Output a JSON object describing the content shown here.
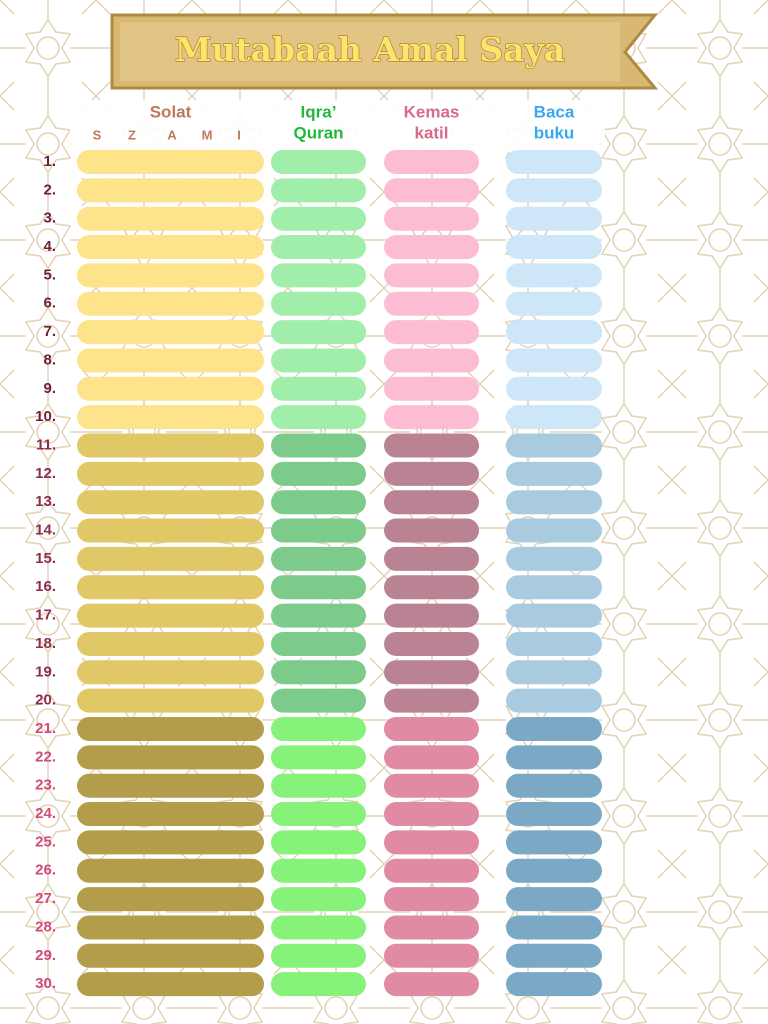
{
  "header": {
    "title": "Mutabaah Amal Saya"
  },
  "columns": [
    {
      "lines": [
        "Solat"
      ],
      "sub_labels": [
        "S",
        "Z",
        "A",
        "M",
        "I"
      ]
    },
    {
      "lines": [
        "Iqra’",
        "Quran"
      ]
    },
    {
      "lines": [
        "Kemas",
        "katil"
      ]
    },
    {
      "lines": [
        "Baca",
        "buku"
      ]
    }
  ],
  "rows": [
    "1.",
    "2.",
    "3.",
    "4.",
    "5.",
    "6.",
    "7.",
    "8.",
    "9.",
    "10.",
    "11.",
    "12.",
    "13.",
    "14.",
    "15.",
    "16.",
    "17.",
    "18.",
    "19.",
    "20.",
    "21.",
    "22.",
    "23.",
    "24.",
    "25.",
    "26.",
    "27.",
    "28.",
    "29.",
    "30."
  ]
}
